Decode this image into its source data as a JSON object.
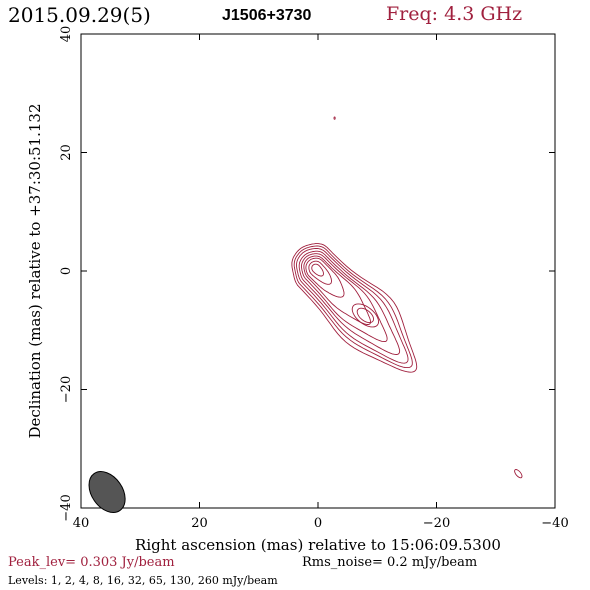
{
  "header": {
    "date": "2015.09.29(5)",
    "source": "J1506+3730",
    "freq": "Freq: 4.3 GHz"
  },
  "footer": {
    "peak": "Peak_lev=  0.303 Jy/beam",
    "rms": "Rms_noise=  0.2 mJy/beam",
    "levels": "Levels:  1,   2,   4,   8,  16,  32,  65, 130, 260 mJy/beam"
  },
  "colors": {
    "contour": "#a0203e",
    "axis": "#000000",
    "beam": "#555555"
  },
  "chart_data": {
    "type": "contour",
    "title": "J1506+3730",
    "xlabel": "Right ascension (mas) relative to 15:06:09.5300",
    "ylabel": "Declination (mas) relative to +37:30:51.132",
    "xlim": [
      40,
      -40
    ],
    "ylim": [
      -40,
      40
    ],
    "xticks": [
      40,
      20,
      0,
      -20,
      -40
    ],
    "yticks": [
      40,
      20,
      0,
      -20,
      -40
    ],
    "xtick_labels": [
      "40",
      "20",
      "0",
      "−20",
      "−40"
    ],
    "ytick_labels": [
      "40",
      "20",
      "0",
      "−20",
      "−40"
    ],
    "levels_mJy": [
      1,
      2,
      4,
      8,
      16,
      32,
      65,
      130,
      260
    ],
    "peak_Jy_per_beam": 0.303,
    "rms_noise_mJy_per_beam": 0.2,
    "core_position_mas": [
      0.3,
      0.4
    ],
    "jet_knot_position_mas": [
      -8,
      -7.5
    ],
    "jet_end_mas": [
      -14,
      -13
    ],
    "isolated_feature_mas": [
      -33.8,
      -34.2
    ],
    "beam": {
      "major_mas": 3.8,
      "minor_mas": 2.6,
      "pa_deg": -35,
      "center_mas": [
        35.6,
        -37.3
      ]
    }
  }
}
